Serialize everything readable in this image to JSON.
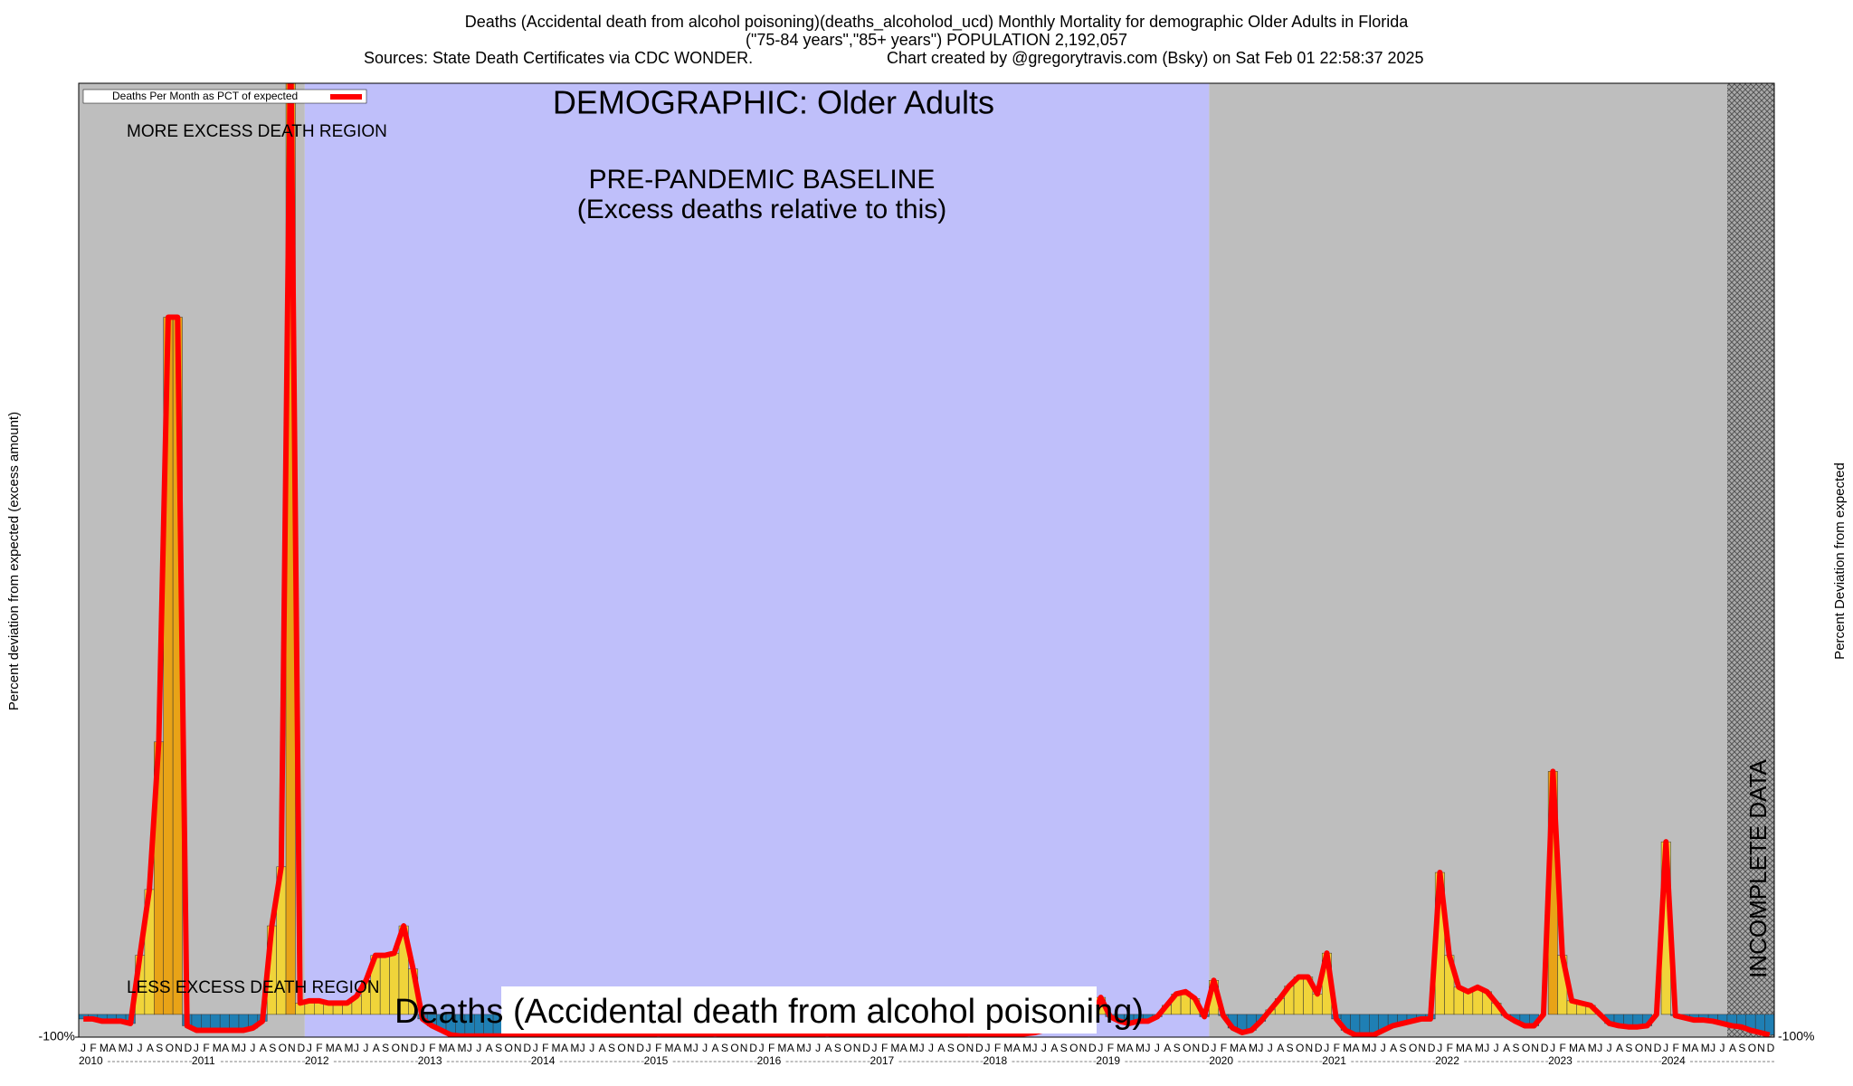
{
  "chart_data": {
    "type": "bar",
    "title": "Deaths (Accidental death from alcohol poisoning)(deaths_alcoholod_ucd) Monthly Mortality for demographic Older Adults in Florida",
    "subtitle": "(\"75-84 years\",\"85+ years\") POPULATION 2,192,057",
    "source": "Sources: State Death Certificates via CDC WONDER.",
    "credit": "Chart created by @gregorytravis.com (Bsky) on Sat Feb 01 22:58:37 2025",
    "demographic": "DEMOGRAPHIC: Older Adults",
    "more_label": "MORE EXCESS DEATH REGION",
    "less_label": "LESS EXCESS DEATH REGION",
    "bottom_label": "Deaths (Accidental death from alcohol poisoning)",
    "ylabel": "Percent deviation from expected (excess amount)",
    "y2label": "Percent Deviation from expected",
    "legend": "Deaths Per Month as PCT of expected",
    "regions": [
      {
        "from": 0,
        "to": 24,
        "color": "#bebebe"
      },
      {
        "from": 24,
        "to": 120,
        "color": "#bfbffa",
        "label": "PRE-PANDEMIC BASELINE",
        "sublabel": "(Excess deaths relative to this)"
      },
      {
        "from": 120,
        "to": 175,
        "color": "#bebebe"
      },
      {
        "from": 175,
        "to": 180,
        "color": "#aaaaaa",
        "hatched": true,
        "label": "INCOMPLETE DATA"
      }
    ],
    "years": [
      "2010",
      "2011",
      "2012",
      "2013",
      "2014",
      "2015",
      "2016",
      "2017",
      "2018",
      "2019",
      "2020",
      "2021",
      "2022",
      "2023",
      "2024"
    ],
    "categories": [
      "J",
      "F",
      "M",
      "A",
      "M",
      "J",
      "J",
      "A",
      "S",
      "O",
      "N",
      "D",
      "J",
      "F",
      "M",
      "A",
      "M",
      "J",
      "J",
      "A",
      "S",
      "O",
      "N",
      "D",
      "J",
      "F",
      "M",
      "A",
      "M",
      "J",
      "J",
      "A",
      "S",
      "O",
      "N",
      "D",
      "J",
      "F",
      "M",
      "A",
      "M",
      "J",
      "J",
      "A",
      "S",
      "O",
      "N",
      "D",
      "J",
      "F",
      "M",
      "A",
      "M",
      "J",
      "J",
      "A",
      "S",
      "O",
      "N",
      "D",
      "J",
      "F",
      "M",
      "A",
      "M",
      "J",
      "J",
      "A",
      "S",
      "O",
      "N",
      "D",
      "J",
      "F",
      "M",
      "A",
      "M",
      "J",
      "J",
      "A",
      "S",
      "O",
      "N",
      "D",
      "J",
      "F",
      "M",
      "A",
      "M",
      "J",
      "J",
      "A",
      "S",
      "O",
      "N",
      "D",
      "J",
      "F",
      "M",
      "A",
      "M",
      "J",
      "J",
      "A",
      "S",
      "O",
      "N",
      "D",
      "J",
      "F",
      "M",
      "A",
      "M",
      "J",
      "J",
      "A",
      "S",
      "O",
      "N",
      "D",
      "J",
      "F",
      "M",
      "A",
      "M",
      "J",
      "J",
      "A",
      "S",
      "O",
      "N",
      "D",
      "J",
      "F",
      "M",
      "A",
      "M",
      "J",
      "J",
      "A",
      "S",
      "O",
      "N",
      "D",
      "J",
      "F",
      "M",
      "A",
      "M",
      "J",
      "J",
      "A",
      "S",
      "O",
      "N",
      "D",
      "J",
      "F",
      "M",
      "A",
      "M",
      "J",
      "J",
      "A",
      "S",
      "O",
      "N",
      "D",
      "J",
      "F",
      "M",
      "A",
      "M",
      "J",
      "J",
      "A",
      "S",
      "O",
      "N",
      "D"
    ],
    "values": [
      -20,
      -20,
      -30,
      -30,
      -30,
      -40,
      260,
      550,
      1200,
      3070,
      3070,
      -50,
      -70,
      -70,
      -70,
      -70,
      -70,
      -70,
      -60,
      -30,
      390,
      650,
      4300,
      50,
      60,
      60,
      50,
      50,
      50,
      80,
      150,
      260,
      260,
      270,
      390,
      200,
      -20,
      -50,
      -70,
      -90,
      -95,
      -95,
      -95,
      -95,
      -95,
      -95,
      -95,
      -95,
      -90,
      -88,
      -90,
      -92,
      -90,
      -90,
      -88,
      -90,
      -92,
      -90,
      -90,
      -90,
      -90,
      -85,
      -88,
      -90,
      -90,
      -92,
      -90,
      -85,
      -88,
      -90,
      -90,
      -90,
      -90,
      -88,
      -90,
      -90,
      -92,
      -90,
      -88,
      -85,
      -90,
      -90,
      -90,
      -90,
      -90,
      -90,
      -88,
      -90,
      -92,
      -90,
      -90,
      -88,
      -90,
      -90,
      -85,
      -90,
      -90,
      -88,
      -90,
      -90,
      -85,
      -80,
      -70,
      -60,
      -50,
      -60,
      -70,
      -40,
      75,
      -10,
      -30,
      -40,
      -30,
      -30,
      -10,
      40,
      90,
      100,
      70,
      -10,
      150,
      -5,
      -60,
      -80,
      -70,
      -30,
      20,
      70,
      125,
      165,
      165,
      90,
      270,
      -20,
      -70,
      -90,
      -90,
      -90,
      -70,
      -50,
      -40,
      -30,
      -20,
      -20,
      625,
      260,
      120,
      100,
      120,
      100,
      50,
      -5,
      -30,
      -50,
      -50,
      0,
      1070,
      260,
      60,
      50,
      40,
      0,
      -40,
      -50,
      -55,
      -55,
      -50,
      0,
      760,
      -5,
      -15,
      -25,
      -25,
      -30,
      -40,
      -50,
      -55,
      -70,
      -80,
      -90
    ],
    "colors": {
      "above": "#f0d43a",
      "high": "#e8a317",
      "below": "#1f7fb4",
      "line": "#ff0000"
    },
    "ylim": [
      -100,
      4100
    ],
    "yticks": [
      {
        "value": -100,
        "label": "-100%"
      }
    ]
  }
}
